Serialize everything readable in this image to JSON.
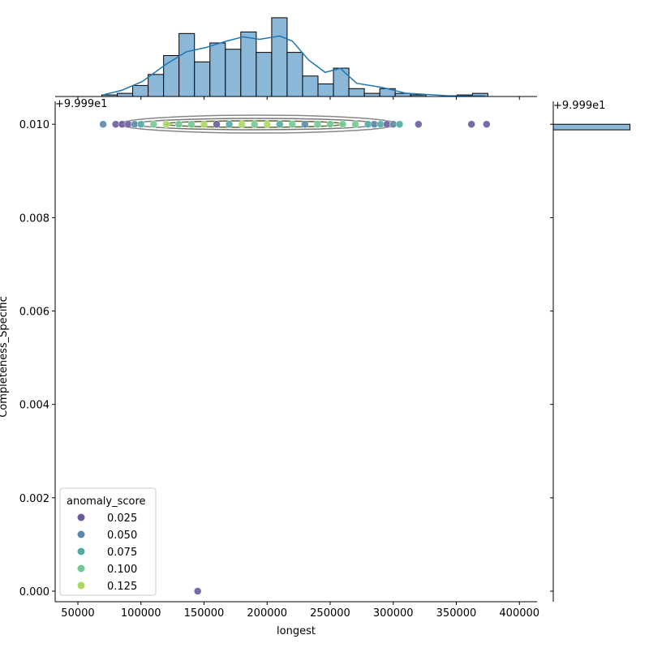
{
  "chart_data": {
    "type": "scatter",
    "x_label": "longest",
    "y_label": "Completeness_Specific",
    "y_offset_label": "+9.999e1",
    "xlim": [
      32000,
      414000
    ],
    "xticks": [
      50000,
      100000,
      150000,
      200000,
      250000,
      300000,
      350000,
      400000
    ],
    "ylim": [
      -0.000226,
      0.01049
    ],
    "yticks": [
      {
        "value": 0,
        "label": "0.000"
      },
      {
        "value": 0.002,
        "label": "0.002"
      },
      {
        "value": 0.004,
        "label": "0.004"
      },
      {
        "value": 0.006,
        "label": "0.006"
      },
      {
        "value": 0.008,
        "label": "0.008"
      },
      {
        "value": 0.01,
        "label": "0.010"
      }
    ],
    "x": [
      70000,
      80000,
      85000,
      90000,
      95000,
      100000,
      110000,
      120000,
      130000,
      140000,
      150000,
      160000,
      170000,
      180000,
      190000,
      200000,
      210000,
      220000,
      230000,
      240000,
      250000,
      260000,
      270000,
      280000,
      285000,
      290000,
      295000,
      300000,
      305000,
      320000,
      362000,
      374000,
      145000
    ],
    "y": [
      0.01,
      0.01,
      0.01,
      0.01,
      0.01,
      0.01,
      0.01,
      0.01,
      0.01,
      0.01,
      0.01,
      0.01,
      0.01,
      0.01,
      0.01,
      0.01,
      0.01,
      0.01,
      0.01,
      0.01,
      0.01,
      0.01,
      0.01,
      0.01,
      0.01,
      0.01,
      0.01,
      0.01,
      0.01,
      0.01,
      0.01,
      0.01,
      0
    ],
    "hue": [
      0.05,
      0.03,
      0.02,
      0.01,
      0.06,
      0.08,
      0.1,
      0.12,
      0.11,
      0.09,
      0.13,
      0.02,
      0.07,
      0.12,
      0.1,
      0.13,
      0.08,
      0.11,
      0.06,
      0.09,
      0.1,
      0.11,
      0.1,
      0.07,
      0.06,
      0.08,
      0.02,
      0.05,
      0.07,
      0.03,
      0.02,
      0.02,
      0.03
    ],
    "legend": {
      "title": "anomaly_score",
      "corner": "lower left",
      "entries": [
        {
          "value": 0.025,
          "label": "0.025",
          "color": "#6b5a9c"
        },
        {
          "value": 0.05,
          "label": "0.050",
          "color": "#5b89a9"
        },
        {
          "value": 0.075,
          "label": "0.075",
          "color": "#52aaa6"
        },
        {
          "value": 0.1,
          "label": "0.100",
          "color": "#72ca92"
        },
        {
          "value": 0.125,
          "label": "0.125",
          "color": "#a9da5e"
        }
      ]
    },
    "top_histogram": {
      "color": "#8bb8d9",
      "ylim": [
        0,
        52
      ],
      "bins": [
        69000,
        81240,
        93480,
        105720,
        117960,
        130200,
        142440,
        154680,
        166920,
        179160,
        191400,
        203640,
        215880,
        228120,
        240360,
        252600,
        264840,
        277080,
        289320,
        301560,
        313800,
        326040,
        338280,
        350520,
        362760,
        375000
      ],
      "counts": [
        1,
        2,
        7,
        14,
        26,
        40,
        22,
        34,
        30,
        41,
        28,
        50,
        28,
        13,
        8,
        18,
        5,
        2,
        5,
        2,
        1,
        0,
        0,
        1,
        2
      ],
      "kde_color": "#1f77b4",
      "kde_x": [
        70000,
        85000,
        101000,
        120000,
        136000,
        151000,
        168000,
        181000,
        194000,
        210000,
        220000,
        233000,
        246000,
        258000,
        271000,
        291000,
        310000,
        342000,
        373000
      ],
      "kde_y": [
        1,
        4,
        9.5,
        20.5,
        28.4,
        31,
        35.2,
        37.9,
        36.3,
        38.4,
        35.2,
        23.1,
        15.3,
        17.9,
        8.4,
        5.8,
        2.1,
        0.5,
        0.3
      ]
    },
    "right_histogram": {
      "color": "#8bb8d9",
      "xlim": [
        0,
        310
      ],
      "bins": [
        0.00988,
        0.01
      ],
      "counts": [
        299
      ],
      "offset_label": "+9.999e1"
    }
  }
}
